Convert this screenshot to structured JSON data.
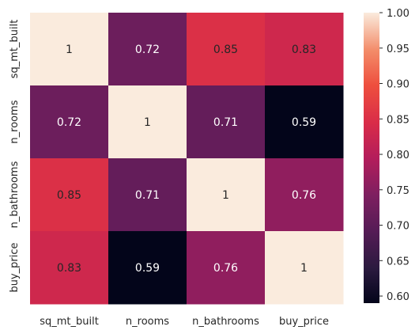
{
  "chart_data": {
    "type": "heatmap",
    "title": "",
    "xlabel": "",
    "ylabel": "",
    "x_categories": [
      "sq_mt_built",
      "n_rooms",
      "n_bathrooms",
      "buy_price"
    ],
    "y_categories": [
      "sq_mt_built",
      "n_rooms",
      "n_bathrooms",
      "buy_price"
    ],
    "values": [
      [
        1,
        0.72,
        0.85,
        0.83
      ],
      [
        0.72,
        1,
        0.71,
        0.59
      ],
      [
        0.85,
        0.71,
        1,
        0.76
      ],
      [
        0.83,
        0.59,
        0.76,
        1
      ]
    ],
    "annotations": [
      [
        "1",
        "0.72",
        "0.85",
        "0.83"
      ],
      [
        "0.72",
        "1",
        "0.71",
        "0.59"
      ],
      [
        "0.85",
        "0.71",
        "1",
        "0.76"
      ],
      [
        "0.83",
        "0.59",
        "0.76",
        "1"
      ]
    ],
    "colorbar": {
      "vmin": 0.59,
      "vmax": 1.0,
      "ticks": [
        "0.60",
        "0.65",
        "0.70",
        "0.75",
        "0.80",
        "0.85",
        "0.90",
        "0.95",
        "1.00"
      ],
      "colormap": "rocket"
    }
  }
}
